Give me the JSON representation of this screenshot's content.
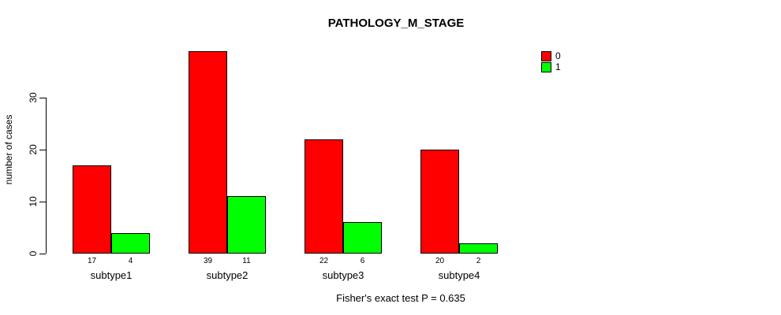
{
  "title": "PATHOLOGY_M_STAGE",
  "footnote": "Fisher's exact test P = 0.635",
  "chart_data": {
    "type": "bar",
    "title": "PATHOLOGY_M_STAGE",
    "categories": [
      "subtype1",
      "subtype2",
      "subtype3",
      "subtype4"
    ],
    "series": [
      {
        "name": "0",
        "color": "#FF0000",
        "values": [
          17,
          39,
          22,
          20
        ]
      },
      {
        "name": "1",
        "color": "#00FF00",
        "values": [
          4,
          11,
          6,
          2
        ]
      }
    ],
    "bar_value_labels": [
      [
        17,
        39,
        22,
        20
      ],
      [
        4,
        11,
        6,
        2
      ]
    ],
    "xlabel": "",
    "ylabel": "number of cases",
    "yticks": [
      0,
      10,
      20,
      30
    ],
    "ylim": [
      0,
      40
    ],
    "grid": false,
    "legend_position": "top-right",
    "annotation": "Fisher's exact test P = 0.635"
  }
}
